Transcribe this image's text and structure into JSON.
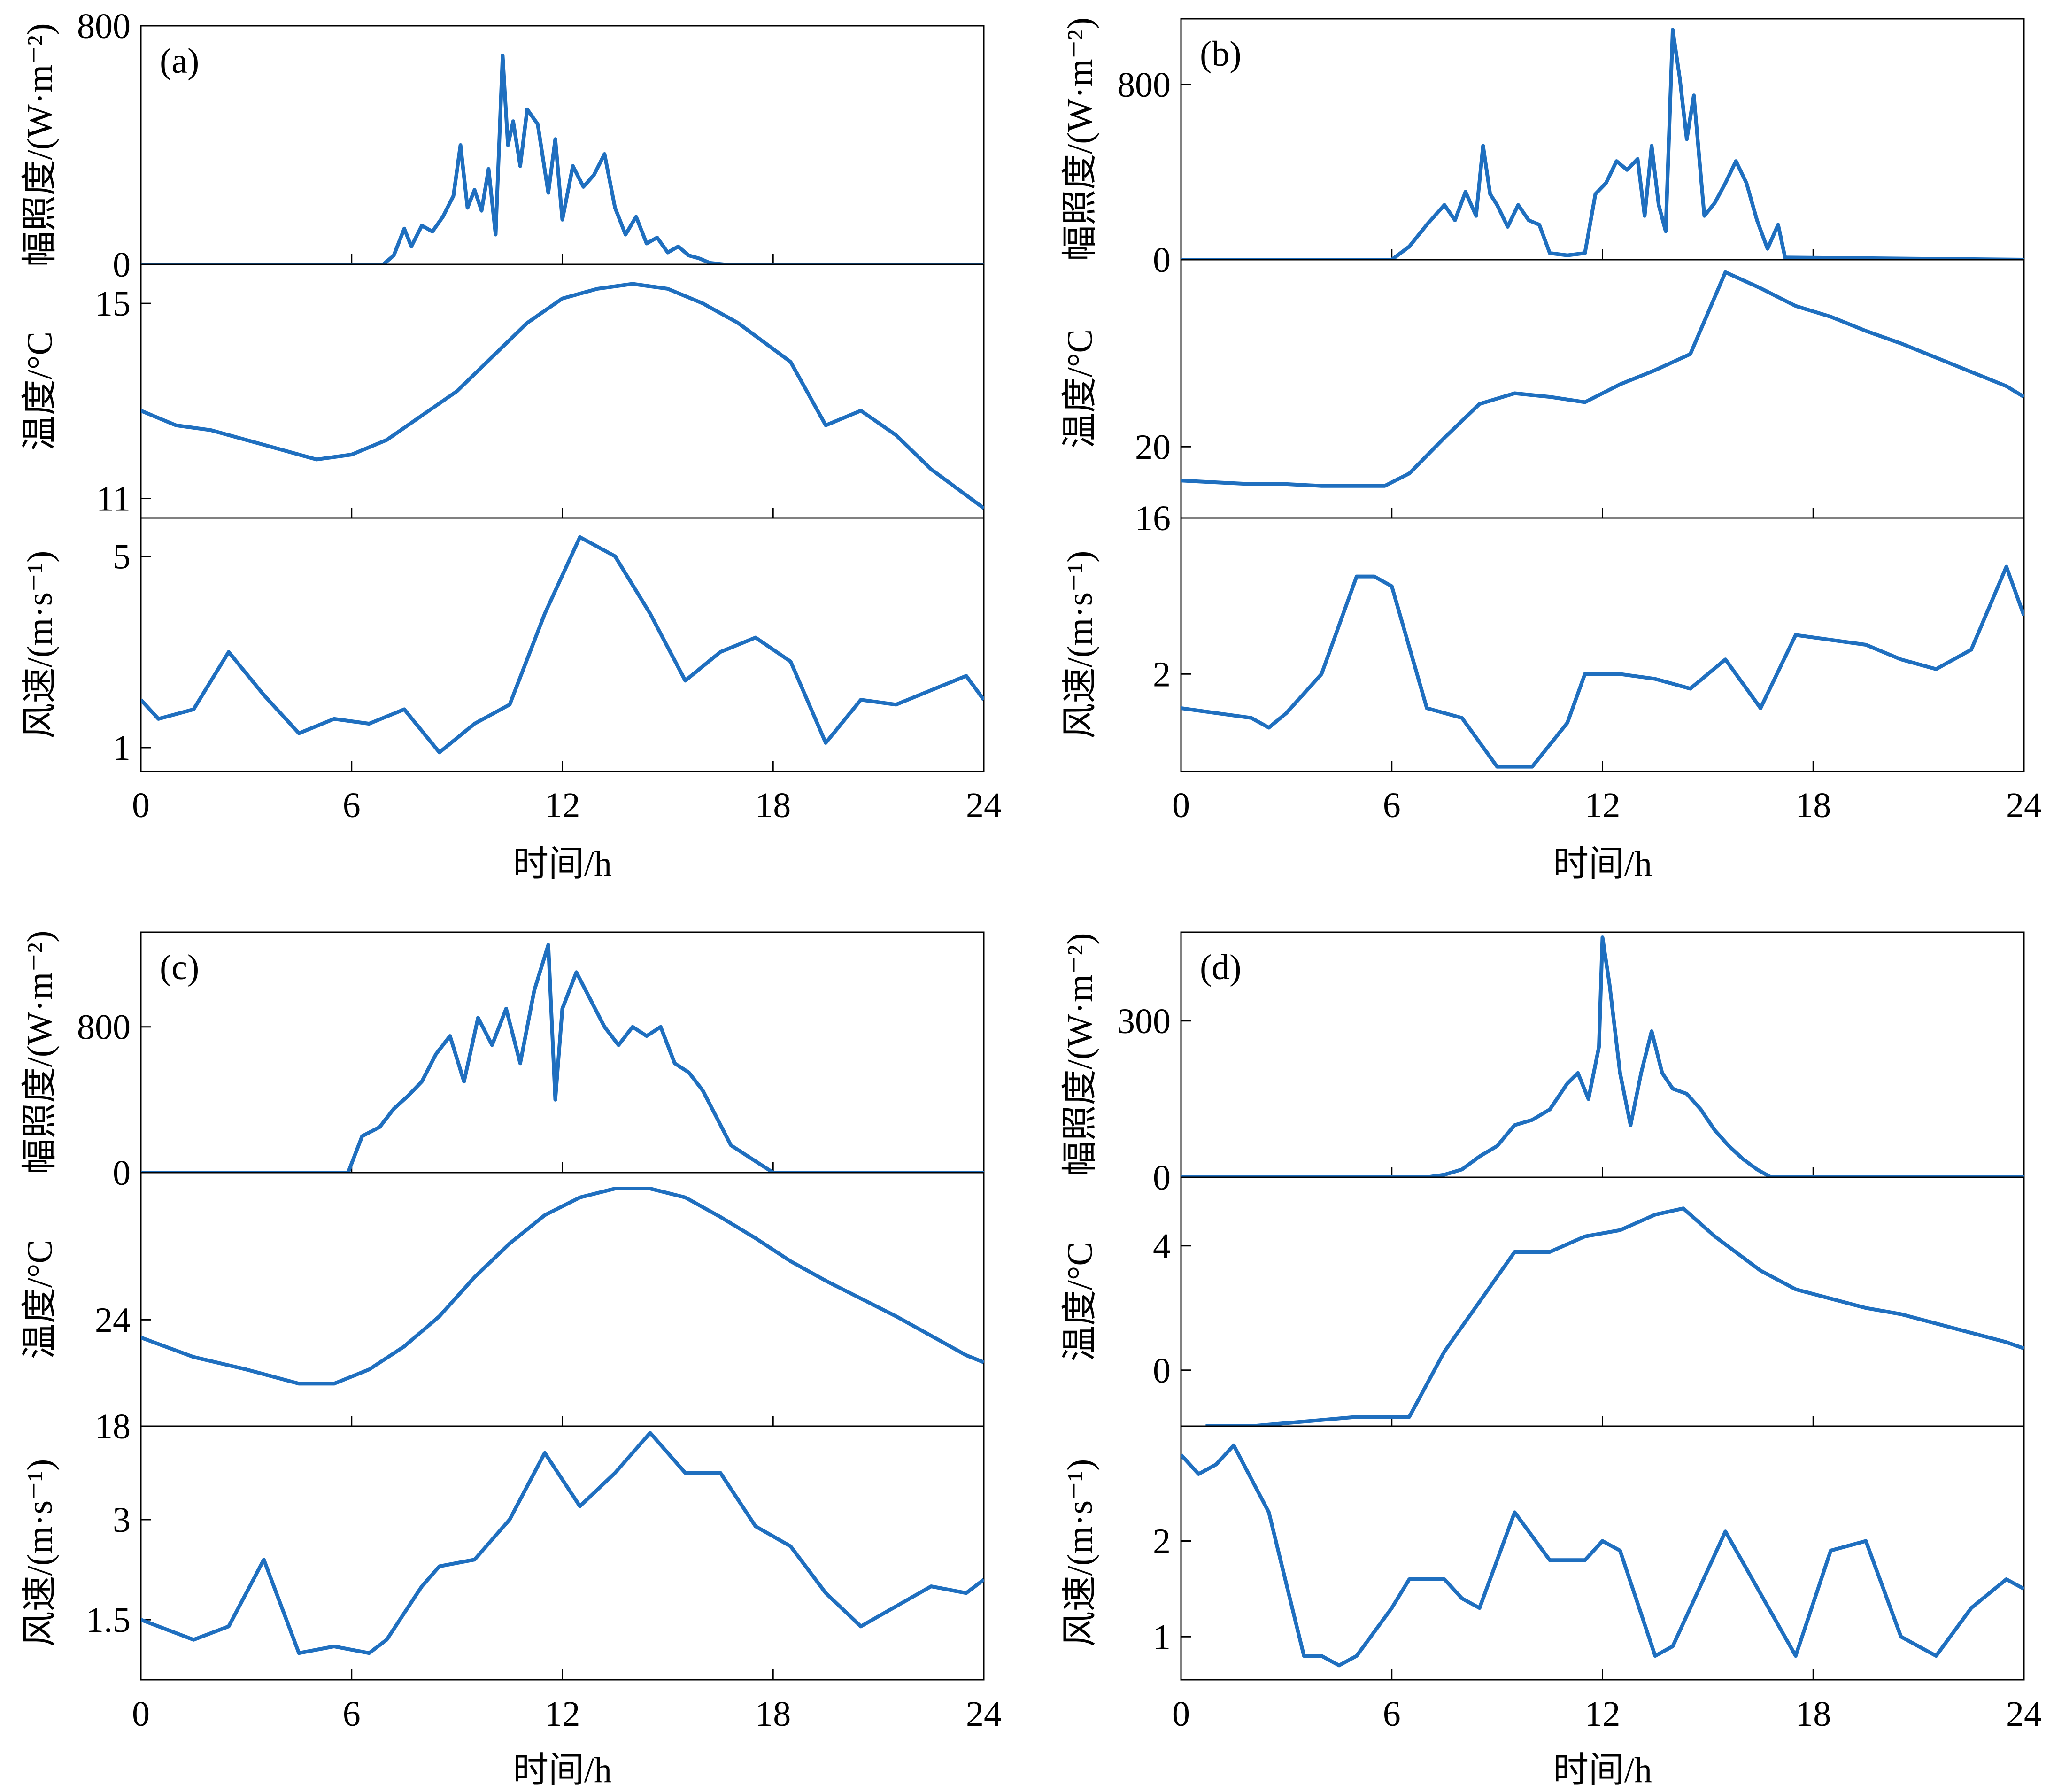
{
  "figure": {
    "x_ticks": [
      "0",
      "6",
      "12",
      "18",
      "24"
    ],
    "xlabel": "时间/h",
    "ylabels": {
      "irradiance": "幅照度/(W·m⁻²)",
      "temperature": "温度/°C",
      "wind": "风速/(m·s⁻¹)"
    },
    "line_color": "#1f6fbf"
  },
  "chart_data": [
    {
      "panel": "(a)",
      "type": "line",
      "xlim": [
        0,
        24
      ],
      "subplots": [
        {
          "quantity": "irradiance",
          "ylim": [
            0,
            800
          ],
          "yticks": [
            0,
            800
          ],
          "x": [
            0,
            6.9,
            7.2,
            7.5,
            7.7,
            8.0,
            8.3,
            8.6,
            8.9,
            9.1,
            9.3,
            9.5,
            9.7,
            9.9,
            10.1,
            10.3,
            10.45,
            10.6,
            10.8,
            11.0,
            11.3,
            11.6,
            11.8,
            12.0,
            12.3,
            12.6,
            12.9,
            13.2,
            13.5,
            13.8,
            14.1,
            14.4,
            14.7,
            15.0,
            15.3,
            15.6,
            15.9,
            16.2,
            16.6,
            24
          ],
          "y": [
            0,
            0,
            30,
            120,
            60,
            130,
            110,
            160,
            230,
            400,
            190,
            250,
            180,
            320,
            100,
            700,
            400,
            480,
            330,
            520,
            470,
            240,
            420,
            150,
            330,
            260,
            300,
            370,
            190,
            100,
            160,
            70,
            90,
            40,
            60,
            30,
            20,
            5,
            0,
            0
          ]
        },
        {
          "quantity": "temperature",
          "ylim": [
            10.6,
            15.8
          ],
          "yticks": [
            11,
            15
          ],
          "x": [
            0,
            1,
            2,
            3.5,
            5,
            6,
            7,
            8,
            9,
            10,
            11,
            12,
            13,
            14,
            15,
            16,
            17,
            18.5,
            19.5,
            20.5,
            21.5,
            22.5,
            24
          ],
          "y": [
            12.8,
            12.5,
            12.4,
            12.1,
            11.8,
            11.9,
            12.2,
            12.7,
            13.2,
            13.9,
            14.6,
            15.1,
            15.3,
            15.4,
            15.3,
            15.0,
            14.6,
            13.8,
            12.5,
            12.8,
            12.3,
            11.6,
            10.8
          ]
        },
        {
          "quantity": "wind",
          "ylim": [
            0.5,
            5.8
          ],
          "yticks": [
            1,
            5
          ],
          "x": [
            0,
            0.5,
            1.5,
            2.5,
            3.5,
            4.5,
            5.5,
            6.5,
            7.5,
            8.5,
            9.5,
            10.5,
            11.5,
            12.5,
            13.5,
            14.5,
            15.5,
            16.5,
            17.5,
            18.5,
            19.5,
            20.5,
            21.5,
            22.5,
            23.5,
            24
          ],
          "y": [
            2.0,
            1.6,
            1.8,
            3.0,
            2.1,
            1.3,
            1.6,
            1.5,
            1.8,
            0.9,
            1.5,
            1.9,
            3.8,
            5.4,
            5.0,
            3.8,
            2.4,
            3.0,
            3.3,
            2.8,
            1.1,
            2.0,
            1.9,
            2.2,
            2.5,
            2.0
          ]
        }
      ]
    },
    {
      "panel": "(b)",
      "type": "line",
      "xlim": [
        0,
        24
      ],
      "subplots": [
        {
          "quantity": "irradiance",
          "ylim": [
            0,
            1100
          ],
          "yticks": [
            0,
            800
          ],
          "x": [
            0,
            6,
            6.5,
            7.0,
            7.5,
            7.8,
            8.1,
            8.4,
            8.6,
            8.8,
            9.0,
            9.3,
            9.6,
            9.9,
            10.2,
            10.5,
            11.0,
            11.5,
            11.8,
            12.1,
            12.4,
            12.7,
            13.0,
            13.2,
            13.4,
            13.6,
            13.8,
            14.0,
            14.2,
            14.4,
            14.6,
            14.9,
            15.2,
            15.5,
            15.8,
            16.1,
            16.4,
            16.7,
            17.0,
            17.2,
            24
          ],
          "y": [
            0,
            0,
            60,
            160,
            250,
            180,
            310,
            200,
            520,
            300,
            250,
            150,
            250,
            180,
            160,
            30,
            20,
            30,
            300,
            350,
            450,
            410,
            460,
            200,
            520,
            250,
            130,
            1050,
            830,
            550,
            750,
            200,
            260,
            350,
            450,
            350,
            180,
            50,
            160,
            10,
            0
          ]
        },
        {
          "quantity": "temperature",
          "ylim": [
            16,
            30.5
          ],
          "yticks": [
            16,
            20
          ],
          "x": [
            0,
            1,
            2,
            3,
            4,
            5,
            5.8,
            6.5,
            7.5,
            8.5,
            9.5,
            10.5,
            11.5,
            12.5,
            13.5,
            14.5,
            15.5,
            16.5,
            17.5,
            18.5,
            19.5,
            20.5,
            21.5,
            22.5,
            23.5,
            24
          ],
          "y": [
            18.1,
            18.0,
            17.9,
            17.9,
            17.8,
            17.8,
            17.8,
            18.5,
            20.5,
            22.4,
            23.0,
            22.8,
            22.5,
            23.5,
            24.3,
            25.2,
            29.8,
            28.9,
            27.9,
            27.3,
            26.5,
            25.8,
            25.0,
            24.2,
            23.4,
            22.8
          ]
        },
        {
          "quantity": "wind",
          "ylim": [
            0,
            5.2
          ],
          "yticks": [
            2
          ],
          "x": [
            0,
            1,
            2,
            2.5,
            3,
            4,
            5,
            5.5,
            6,
            7,
            8,
            9,
            10,
            11,
            11.5,
            12.5,
            13.5,
            14.5,
            15.5,
            16.5,
            17.5,
            18.5,
            19.5,
            20.5,
            21.5,
            22.5,
            23.5,
            24
          ],
          "y": [
            1.3,
            1.2,
            1.1,
            0.9,
            1.2,
            2.0,
            4.0,
            4.0,
            3.8,
            1.3,
            1.1,
            0.1,
            0.1,
            1.0,
            2.0,
            2.0,
            1.9,
            1.7,
            2.3,
            1.3,
            2.8,
            2.7,
            2.6,
            2.3,
            2.1,
            2.5,
            4.2,
            3.2
          ]
        }
      ]
    },
    {
      "panel": "(c)",
      "type": "line",
      "xlim": [
        0,
        24
      ],
      "subplots": [
        {
          "quantity": "irradiance",
          "ylim": [
            0,
            1320
          ],
          "yticks": [
            0,
            800
          ],
          "x": [
            0,
            5.9,
            6.3,
            6.8,
            7.2,
            7.6,
            8.0,
            8.4,
            8.8,
            9.2,
            9.6,
            10.0,
            10.4,
            10.8,
            11.2,
            11.6,
            11.8,
            12.0,
            12.4,
            12.8,
            13.2,
            13.6,
            14.0,
            14.4,
            14.8,
            15.2,
            15.6,
            16.0,
            16.4,
            16.8,
            17.2,
            17.6,
            18.0,
            24
          ],
          "y": [
            0,
            0,
            200,
            250,
            350,
            420,
            500,
            650,
            750,
            500,
            850,
            700,
            900,
            600,
            1000,
            1250,
            400,
            900,
            1100,
            950,
            800,
            700,
            800,
            750,
            800,
            600,
            550,
            450,
            300,
            150,
            100,
            50,
            0,
            0
          ]
        },
        {
          "quantity": "temperature",
          "ylim": [
            18,
            32.3
          ],
          "yticks": [
            18,
            24
          ],
          "x": [
            0,
            1.5,
            3,
            4.5,
            5.5,
            6.5,
            7.5,
            8.5,
            9.5,
            10.5,
            11.5,
            12.5,
            13.5,
            14.5,
            15.5,
            16.5,
            17.5,
            18.5,
            19.5,
            20.5,
            21.5,
            22.5,
            23.5,
            24
          ],
          "y": [
            23.0,
            21.9,
            21.2,
            20.4,
            20.4,
            21.2,
            22.5,
            24.2,
            26.4,
            28.3,
            29.9,
            30.9,
            31.4,
            31.4,
            30.9,
            29.8,
            28.6,
            27.3,
            26.2,
            25.2,
            24.2,
            23.1,
            22.0,
            21.6
          ]
        },
        {
          "quantity": "wind",
          "ylim": [
            0.6,
            4.4
          ],
          "yticks": [
            1.5,
            3.0
          ],
          "x": [
            0,
            1,
            1.5,
            2.5,
            3.5,
            4.5,
            5.5,
            6.5,
            7,
            8,
            8.5,
            9.5,
            10.5,
            11.5,
            12.5,
            13.5,
            14.5,
            15.5,
            16.5,
            17.5,
            18.5,
            19.5,
            20.5,
            21.5,
            22.5,
            23.5,
            24
          ],
          "y": [
            1.5,
            1.3,
            1.2,
            1.4,
            2.4,
            1.0,
            1.1,
            1.0,
            1.2,
            2.0,
            2.3,
            2.4,
            3.0,
            4.0,
            3.2,
            3.7,
            4.3,
            3.7,
            3.7,
            2.9,
            2.6,
            1.9,
            1.4,
            1.7,
            2.0,
            1.9,
            2.1
          ]
        }
      ]
    },
    {
      "panel": "(d)",
      "type": "line",
      "xlim": [
        0,
        24
      ],
      "subplots": [
        {
          "quantity": "irradiance",
          "ylim": [
            0,
            470
          ],
          "yticks": [
            0,
            300
          ],
          "x": [
            0,
            7.0,
            7.5,
            8.0,
            8.5,
            9.0,
            9.5,
            10.0,
            10.5,
            11.0,
            11.3,
            11.6,
            11.9,
            12.0,
            12.2,
            12.5,
            12.8,
            13.1,
            13.4,
            13.7,
            14.0,
            14.4,
            14.8,
            15.2,
            15.6,
            16.0,
            16.4,
            16.8,
            24
          ],
          "y": [
            0,
            0,
            5,
            15,
            40,
            60,
            100,
            110,
            130,
            180,
            200,
            150,
            250,
            460,
            370,
            200,
            100,
            200,
            280,
            200,
            170,
            160,
            130,
            90,
            60,
            35,
            15,
            0,
            0
          ]
        },
        {
          "quantity": "temperature",
          "ylim": [
            -1.8,
            6.2
          ],
          "yticks": [
            0,
            4
          ],
          "x": [
            0.7,
            2,
            3,
            4,
            5,
            6,
            6.5,
            7.5,
            8.5,
            9.5,
            10.5,
            11.5,
            12.5,
            13.5,
            14.3,
            15.2,
            16.5,
            17.5,
            18.5,
            19.5,
            20.5,
            21.5,
            22.5,
            23.5,
            24
          ],
          "y": [
            -1.8,
            -1.8,
            -1.7,
            -1.6,
            -1.5,
            -1.5,
            -1.5,
            0.6,
            2.2,
            3.8,
            3.8,
            4.3,
            4.5,
            5.0,
            5.2,
            4.3,
            3.2,
            2.6,
            2.3,
            2.0,
            1.8,
            1.5,
            1.2,
            0.9,
            0.7
          ]
        },
        {
          "quantity": "wind",
          "ylim": [
            0.55,
            3.2
          ],
          "yticks": [
            1,
            2
          ],
          "x": [
            0,
            0.5,
            1,
            1.5,
            2.5,
            3.5,
            4,
            4.5,
            5,
            6,
            6.5,
            7.5,
            8,
            8.5,
            9.5,
            10.5,
            11.5,
            12,
            12.5,
            13.5,
            14,
            15.5,
            17.5,
            18.5,
            19.5,
            20.5,
            21.5,
            22.5,
            23.5,
            24
          ],
          "y": [
            2.9,
            2.7,
            2.8,
            3.0,
            2.3,
            0.8,
            0.8,
            0.7,
            0.8,
            1.3,
            1.6,
            1.6,
            1.4,
            1.3,
            2.3,
            1.8,
            1.8,
            2.0,
            1.9,
            0.8,
            0.9,
            2.1,
            0.8,
            1.9,
            2.0,
            1.0,
            0.8,
            1.3,
            1.6,
            1.5
          ]
        }
      ]
    }
  ]
}
